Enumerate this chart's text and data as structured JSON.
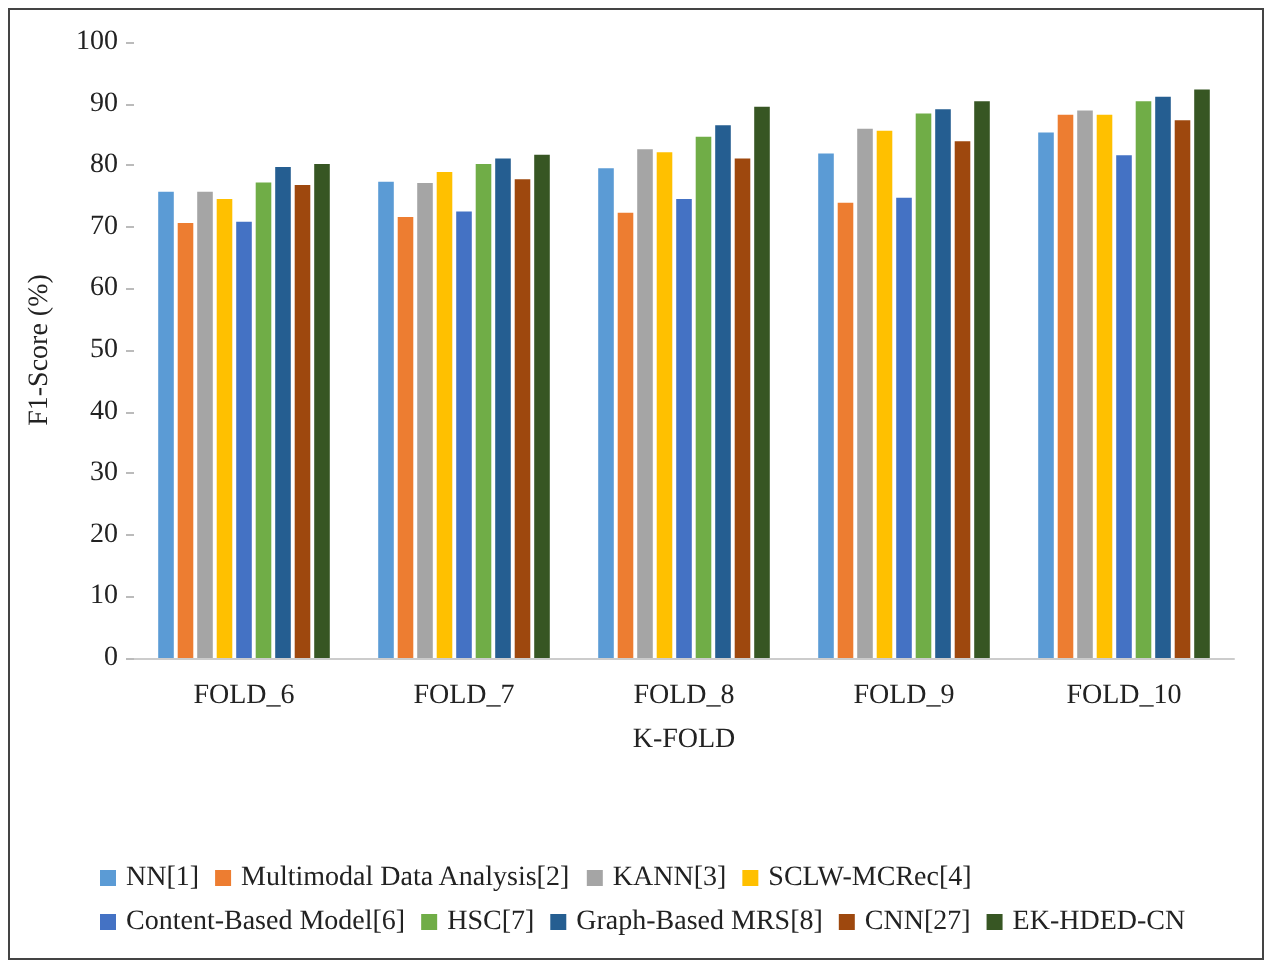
{
  "chart_data": {
    "type": "bar",
    "xlabel": "K-FOLD",
    "ylabel": "F1-Score (%)",
    "categories": [
      "FOLD_6",
      "FOLD_7",
      "FOLD_8",
      "FOLD_9",
      "FOLD_10"
    ],
    "series": [
      {
        "name": "NN[1]",
        "color": "#5b9bd5",
        "values": [
          75.7,
          77.3,
          79.5,
          81.9,
          85.3
        ]
      },
      {
        "name": "Multimodal Data Analysis[2]",
        "color": "#ed7d31",
        "values": [
          70.6,
          71.6,
          72.3,
          73.9,
          88.2
        ]
      },
      {
        "name": "KANN[3]",
        "color": "#a5a5a5",
        "values": [
          75.7,
          77.1,
          82.6,
          85.9,
          88.9
        ]
      },
      {
        "name": "SCLW-MCRec[4]",
        "color": "#ffc000",
        "values": [
          74.5,
          78.9,
          82.1,
          85.6,
          88.2
        ]
      },
      {
        "name": "Content-Based Model[6]",
        "color": "#4472c4",
        "values": [
          70.8,
          72.5,
          74.5,
          74.7,
          81.6
        ]
      },
      {
        "name": "HSC[7]",
        "color": "#70ad47",
        "values": [
          77.2,
          80.2,
          84.6,
          88.4,
          90.4
        ]
      },
      {
        "name": "Graph-Based MRS[8]",
        "color": "#255e91",
        "values": [
          79.7,
          81.1,
          86.5,
          89.1,
          91.1
        ]
      },
      {
        "name": "CNN[27]",
        "color": "#9e480e",
        "values": [
          76.8,
          77.7,
          81.1,
          83.9,
          87.3
        ]
      },
      {
        "name": "EK-HDED-CN",
        "color": "#375623",
        "values": [
          80.2,
          81.7,
          89.5,
          90.4,
          92.3
        ]
      }
    ],
    "ylim": [
      0,
      100
    ],
    "yticks": [
      0,
      10,
      20,
      30,
      40,
      50,
      60,
      70,
      80,
      90,
      100
    ],
    "grid": false,
    "legend": "bottom"
  }
}
